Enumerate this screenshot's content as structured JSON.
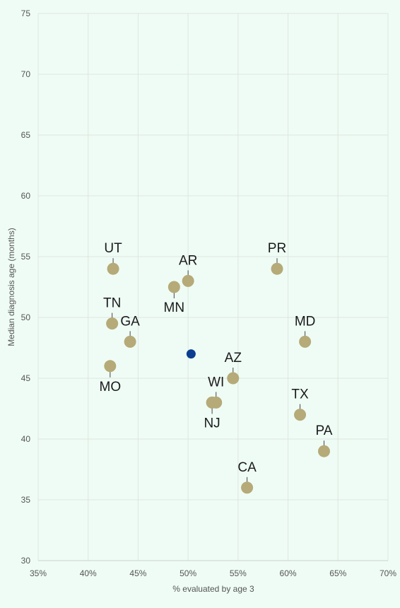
{
  "chart_data": {
    "type": "scatter",
    "title": "",
    "xlabel": "% evaluated by age 3",
    "ylabel": "Median diagnosis age (months)",
    "xlim": [
      35,
      70
    ],
    "ylim": [
      30,
      75
    ],
    "x_ticks": [
      "35%",
      "40%",
      "45%",
      "50%",
      "55%",
      "60%",
      "65%",
      "70%"
    ],
    "y_ticks": [
      "30",
      "35",
      "40",
      "45",
      "50",
      "55",
      "60",
      "65",
      "70",
      "75"
    ],
    "grid": true,
    "colors": {
      "state": "#b5aa78",
      "highlight": "#0d3d91",
      "grid": "#dde6e0",
      "leader": "#444444"
    },
    "points": [
      {
        "label": "UT",
        "x": 42.5,
        "y": 54,
        "label_pos": "above"
      },
      {
        "label": "TN",
        "x": 42.4,
        "y": 49.5,
        "label_pos": "above"
      },
      {
        "label": "GA",
        "x": 44.2,
        "y": 48,
        "label_pos": "above"
      },
      {
        "label": "MO",
        "x": 42.2,
        "y": 46,
        "label_pos": "below"
      },
      {
        "label": "AR",
        "x": 50.0,
        "y": 53,
        "label_pos": "above"
      },
      {
        "label": "MN",
        "x": 48.6,
        "y": 52.5,
        "label_pos": "below"
      },
      {
        "label": "PR",
        "x": 58.9,
        "y": 54,
        "label_pos": "above"
      },
      {
        "label": "MD",
        "x": 61.7,
        "y": 48,
        "label_pos": "above"
      },
      {
        "label": "AZ",
        "x": 54.5,
        "y": 45,
        "label_pos": "above"
      },
      {
        "label": "WI",
        "x": 52.8,
        "y": 43,
        "label_pos": "above"
      },
      {
        "label": "NJ",
        "x": 52.4,
        "y": 43,
        "label_pos": "below"
      },
      {
        "label": "TX",
        "x": 61.2,
        "y": 42,
        "label_pos": "above"
      },
      {
        "label": "PA",
        "x": 63.6,
        "y": 39,
        "label_pos": "above"
      },
      {
        "label": "CA",
        "x": 55.9,
        "y": 36,
        "label_pos": "above"
      }
    ],
    "highlight": {
      "x": 50.3,
      "y": 47
    }
  }
}
